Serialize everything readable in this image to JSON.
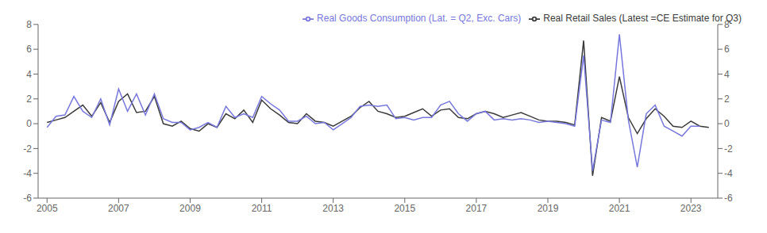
{
  "chart_data": {
    "type": "line",
    "x": [
      2005.0,
      2005.25,
      2005.5,
      2005.75,
      2006.0,
      2006.25,
      2006.5,
      2006.75,
      2007.0,
      2007.25,
      2007.5,
      2007.75,
      2008.0,
      2008.25,
      2008.5,
      2008.75,
      2009.0,
      2009.25,
      2009.5,
      2009.75,
      2010.0,
      2010.25,
      2010.5,
      2010.75,
      2011.0,
      2011.25,
      2011.5,
      2011.75,
      2012.0,
      2012.25,
      2012.5,
      2012.75,
      2013.0,
      2013.25,
      2013.5,
      2013.75,
      2014.0,
      2014.25,
      2014.5,
      2014.75,
      2015.0,
      2015.25,
      2015.5,
      2015.75,
      2016.0,
      2016.25,
      2016.5,
      2016.75,
      2017.0,
      2017.25,
      2017.5,
      2017.75,
      2018.0,
      2018.25,
      2018.5,
      2018.75,
      2019.0,
      2019.25,
      2019.5,
      2019.75,
      2020.0,
      2020.25,
      2020.5,
      2020.75,
      2021.0,
      2021.25,
      2021.5,
      2021.75,
      2022.0,
      2022.25,
      2022.5,
      2022.75,
      2023.0,
      2023.25,
      2023.5
    ],
    "series": [
      {
        "name": "Real Retail Sales (Latest =CE Estimate for Q3)",
        "color": "#3a3a3a",
        "values": [
          0.1,
          0.3,
          0.5,
          1.0,
          1.5,
          0.6,
          1.7,
          0.1,
          1.8,
          2.4,
          0.9,
          1.0,
          2.2,
          0.0,
          -0.2,
          0.2,
          -0.4,
          -0.6,
          0.0,
          -0.3,
          0.8,
          0.4,
          1.1,
          0.1,
          1.9,
          1.2,
          0.7,
          0.1,
          0.0,
          0.8,
          0.2,
          0.1,
          -0.2,
          0.2,
          0.6,
          1.3,
          1.8,
          1.0,
          0.8,
          0.5,
          0.6,
          0.9,
          1.2,
          0.6,
          1.1,
          1.2,
          0.5,
          0.4,
          0.8,
          1.0,
          0.8,
          0.5,
          0.7,
          0.9,
          0.6,
          0.3,
          0.2,
          0.2,
          0.1,
          -0.1,
          6.7,
          -4.2,
          0.5,
          0.2,
          3.8,
          0.5,
          -0.8,
          0.4,
          1.2,
          0.6,
          -0.2,
          -0.3,
          0.2,
          -0.2,
          -0.3
        ]
      },
      {
        "name": "Real Goods Consumption (Lat. = Q2, Exc. Cars)",
        "color": "#7777dd",
        "values": [
          -0.3,
          0.6,
          0.7,
          2.2,
          1.0,
          0.5,
          2.0,
          -0.1,
          2.8,
          1.0,
          2.4,
          0.7,
          2.4,
          0.4,
          0.1,
          0.1,
          -0.5,
          -0.3,
          0.1,
          -0.3,
          1.4,
          0.5,
          0.8,
          0.5,
          2.2,
          1.6,
          1.1,
          0.2,
          0.2,
          0.6,
          0.0,
          0.1,
          -0.5,
          0.0,
          0.5,
          1.4,
          1.5,
          1.4,
          1.5,
          0.4,
          0.5,
          0.3,
          0.5,
          0.5,
          1.5,
          1.8,
          0.8,
          0.2,
          0.8,
          1.0,
          0.3,
          0.4,
          0.3,
          0.4,
          0.3,
          0.1,
          0.2,
          0.1,
          0.0,
          -0.2,
          5.5,
          -3.8,
          0.3,
          0.1,
          7.2,
          0.3,
          -3.5,
          0.8,
          1.5,
          -0.2,
          -0.6,
          -1.0,
          -0.2,
          -0.2,
          null
        ]
      }
    ],
    "xlim": [
      2004.75,
      2023.75
    ],
    "xticks": [
      2005,
      2007,
      2009,
      2011,
      2013,
      2015,
      2017,
      2019,
      2021,
      2023
    ],
    "ylim": [
      -6,
      8
    ],
    "yticks": [
      -6,
      -4,
      -2,
      0,
      2,
      4,
      6,
      8
    ],
    "y2lim": [
      -6,
      8
    ],
    "y2ticks": [
      -6,
      -4,
      -2,
      0,
      2,
      4,
      6,
      8
    ],
    "grid": false,
    "legend": "upper right"
  }
}
